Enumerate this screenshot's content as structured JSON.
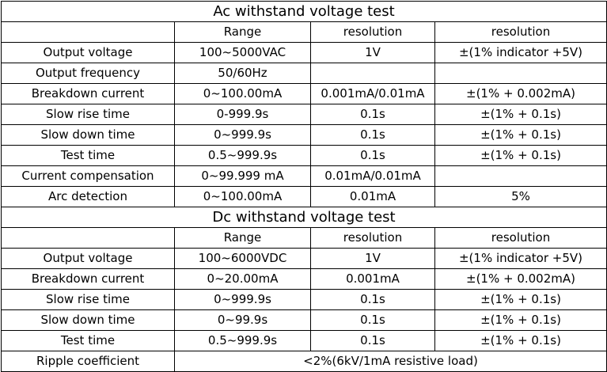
{
  "ac": {
    "title": "Ac withstand voltage test",
    "headers": [
      "",
      "Range",
      "resolution",
      "resolution"
    ],
    "rows": [
      [
        "Output voltage",
        "100~5000VAC",
        "1V",
        "±(1% indicator +5V)"
      ],
      [
        "Output frequency",
        "50/60Hz",
        "",
        ""
      ],
      [
        "Breakdown current",
        "0~100.00mA",
        "0.001mA/0.01mA",
        "±(1% + 0.002mA)"
      ],
      [
        "Slow rise time",
        "0-999.9s",
        "0.1s",
        "±(1% + 0.1s)"
      ],
      [
        "Slow down time",
        "0~999.9s",
        "0.1s",
        "±(1% + 0.1s)"
      ],
      [
        "Test time",
        "0.5~999.9s",
        "0.1s",
        "±(1% + 0.1s)"
      ],
      [
        "Current compensation",
        "0~99.999 mA",
        "0.01mA/0.01mA",
        ""
      ],
      [
        "Arc detection",
        "0~100.00mA",
        "0.01mA",
        "5%"
      ]
    ]
  },
  "dc": {
    "title": "Dc withstand voltage test",
    "headers": [
      "",
      "Range",
      "resolution",
      "resolution"
    ],
    "rows": [
      [
        "Output voltage",
        "100~6000VDC",
        "1V",
        "±(1% indicator +5V)"
      ],
      [
        "Breakdown current",
        "0~20.00mA",
        "0.001mA",
        "±(1% + 0.002mA)"
      ],
      [
        "Slow rise time",
        "0~999.9s",
        "0.1s",
        "±(1% + 0.1s)"
      ],
      [
        "Slow down time",
        "0~99.9s",
        "0.1s",
        "±(1% + 0.1s)"
      ],
      [
        "Test time",
        "0.5~999.9s",
        "0.1s",
        "±(1% + 0.1s)"
      ]
    ],
    "ripple": {
      "label": "Ripple coefficient",
      "value": "<2%(6kV/1mA resistive load)"
    }
  }
}
